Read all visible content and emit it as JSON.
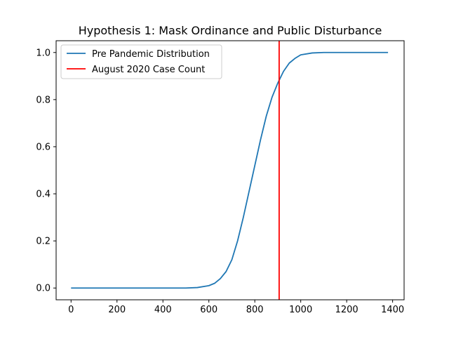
{
  "chart_data": {
    "type": "line",
    "title": "Hypothesis 1: Mask Ordinance and Public Disturbance",
    "xlabel": "",
    "ylabel": "",
    "xlim": [
      -65,
      1450
    ],
    "ylim": [
      -0.05,
      1.05
    ],
    "xticks": [
      0,
      200,
      400,
      600,
      800,
      1000,
      1200,
      1400
    ],
    "yticks": [
      0.0,
      0.2,
      0.4,
      0.6,
      0.8,
      1.0
    ],
    "xtick_labels": [
      "0",
      "200",
      "400",
      "600",
      "800",
      "1000",
      "1200",
      "1400"
    ],
    "ytick_labels": [
      "0.0",
      "0.2",
      "0.4",
      "0.6",
      "0.8",
      "1.0"
    ],
    "grid": false,
    "legend_position": "top-left",
    "series": [
      {
        "name": "Pre Pandemic Distribution",
        "color": "#1f77b4",
        "x": [
          0,
          100,
          200,
          300,
          400,
          500,
          550,
          600,
          625,
          650,
          675,
          700,
          725,
          750,
          775,
          800,
          825,
          850,
          875,
          900,
          925,
          950,
          975,
          1000,
          1050,
          1100,
          1200,
          1300,
          1380
        ],
        "y": [
          0.0,
          0.0,
          0.0,
          0.0,
          0.0,
          0.0,
          0.002,
          0.01,
          0.02,
          0.04,
          0.07,
          0.12,
          0.2,
          0.3,
          0.41,
          0.52,
          0.63,
          0.73,
          0.81,
          0.87,
          0.92,
          0.955,
          0.975,
          0.99,
          0.998,
          1.0,
          1.0,
          1.0,
          1.0
        ]
      },
      {
        "name": "August 2020 Case Count",
        "color": "#ff0000",
        "type": "vline",
        "x": 906
      }
    ]
  }
}
